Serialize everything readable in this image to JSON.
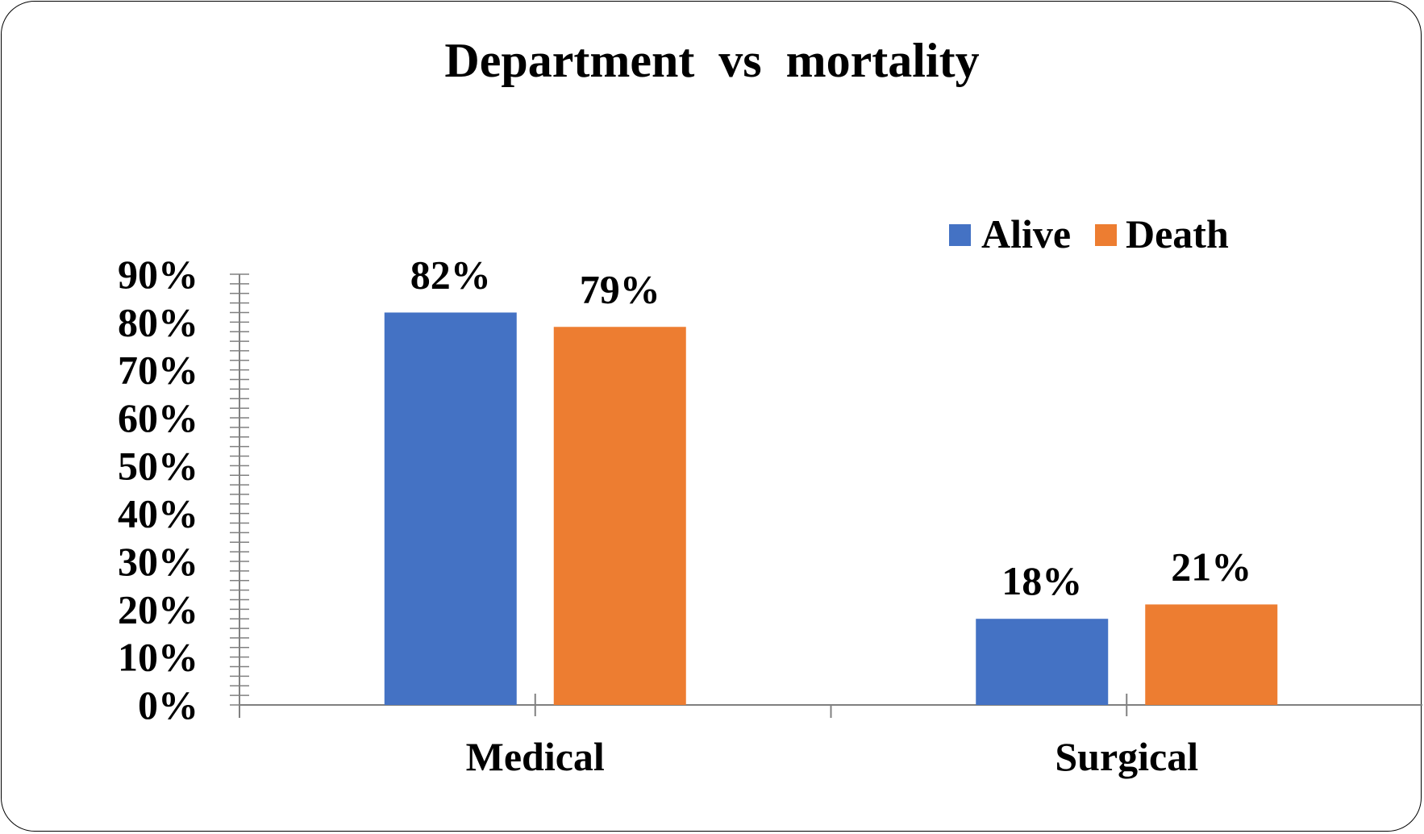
{
  "chart_data": {
    "type": "bar",
    "title": "Department  vs  mortality",
    "categories": [
      "Medical",
      "Surgical"
    ],
    "series": [
      {
        "name": "Alive",
        "values": [
          82,
          18
        ],
        "labels": [
          "82%",
          "18%"
        ],
        "color": "#4472C4"
      },
      {
        "name": "Death",
        "values": [
          79,
          21
        ],
        "labels": [
          "79%",
          "21%"
        ],
        "color": "#ED7D31"
      }
    ],
    "ylim": [
      0,
      90
    ],
    "yticks": [
      0,
      10,
      20,
      30,
      40,
      50,
      60,
      70,
      80,
      90
    ],
    "ytick_labels": [
      "0%",
      "10%",
      "20%",
      "30%",
      "40%",
      "50%",
      "60%",
      "70%",
      "80%",
      "90%"
    ],
    "xlabel": "",
    "ylabel": "",
    "grid": false,
    "legend": "top-right",
    "axis_color": "#808080"
  }
}
